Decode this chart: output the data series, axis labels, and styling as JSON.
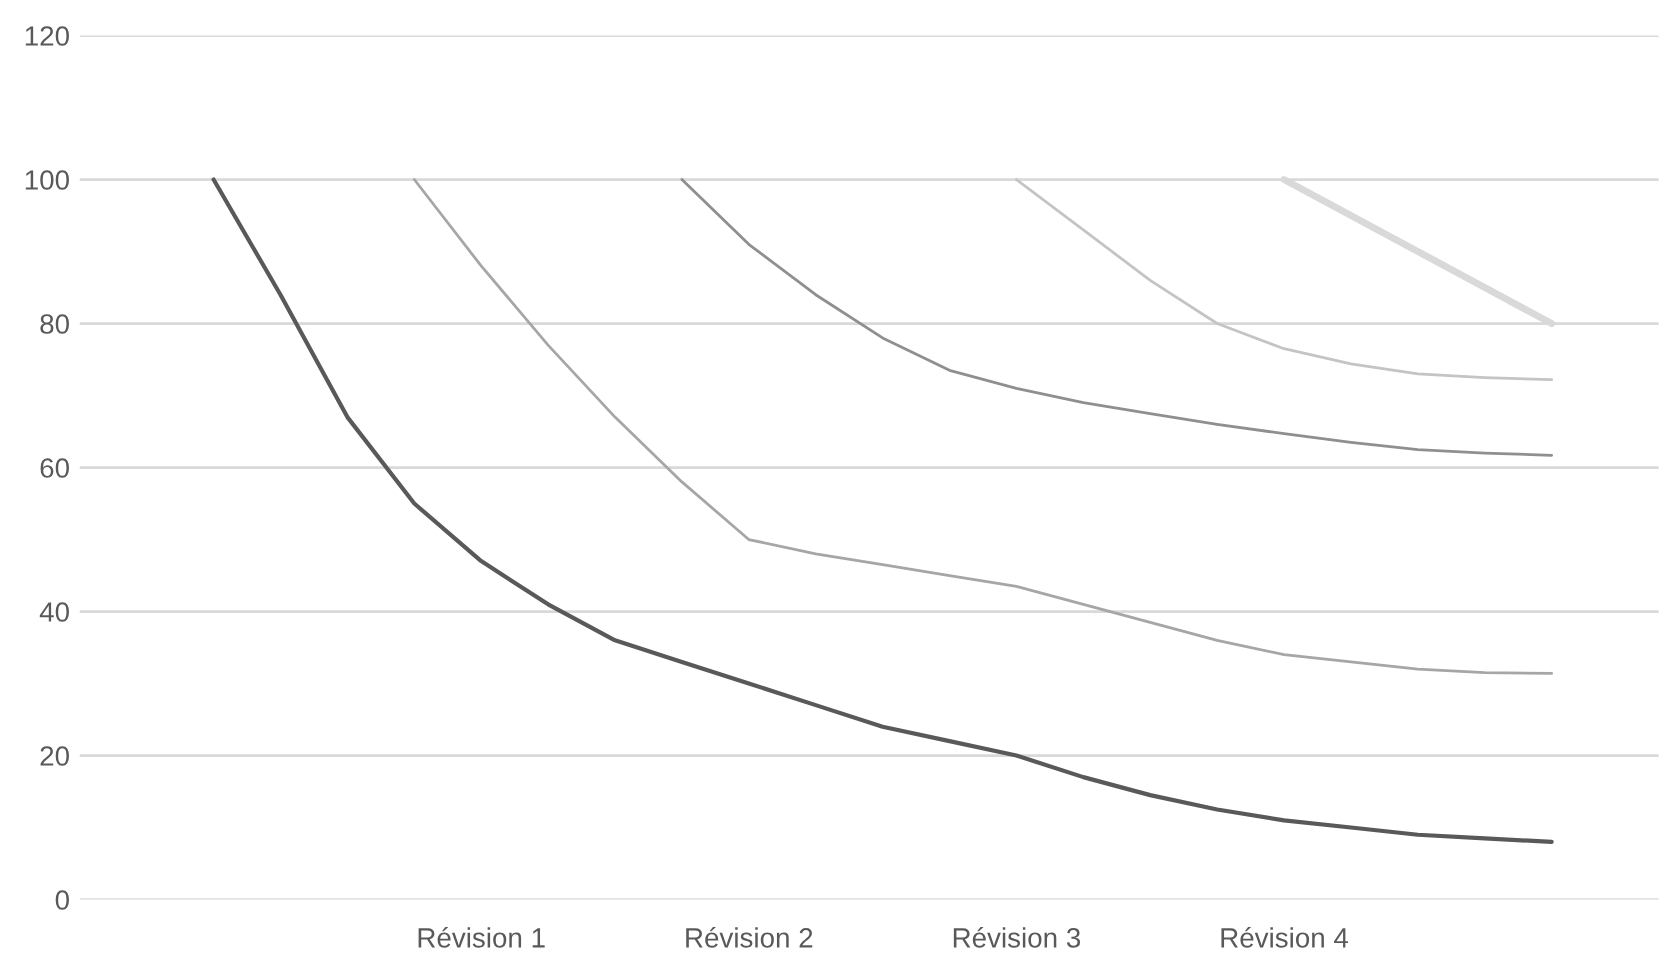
{
  "chart_data": {
    "type": "line",
    "categories": [
      null,
      null,
      null,
      null,
      "Révision 1",
      null,
      null,
      null,
      "Révision 2",
      null,
      null,
      null,
      "Révision 3",
      null,
      null,
      null,
      "Révision 4",
      null,
      null,
      null,
      null
    ],
    "series": [
      {
        "color": "#595959",
        "values": [
          100,
          84,
          67,
          55,
          47,
          41,
          36,
          33,
          30,
          27,
          24,
          22,
          20,
          17,
          14.5,
          12.5,
          11,
          10,
          9,
          8.5,
          8
        ]
      },
      {
        "color": "#a6a6a6",
        "values": [
          null,
          null,
          null,
          100,
          88,
          77,
          67,
          58,
          50,
          48,
          46.5,
          45,
          43.5,
          41,
          38.5,
          36,
          34,
          33,
          32,
          31.5,
          31.4
        ]
      },
      {
        "color": "#8f8f8f",
        "values": [
          null,
          null,
          null,
          null,
          null,
          null,
          null,
          100,
          91,
          84,
          78,
          73.5,
          71,
          69,
          67.5,
          66,
          64.7,
          63.5,
          62.5,
          62,
          61.7
        ]
      },
      {
        "color": "#c4c4c4",
        "values": [
          null,
          null,
          null,
          null,
          null,
          null,
          null,
          null,
          null,
          null,
          null,
          null,
          100,
          93,
          86,
          80,
          76.5,
          74.4,
          73,
          72.5,
          72.2
        ]
      },
      {
        "color": "#d9d9d9",
        "values": [
          null,
          null,
          null,
          null,
          null,
          null,
          null,
          null,
          null,
          null,
          null,
          null,
          null,
          null,
          null,
          null,
          100,
          95,
          90,
          85,
          80
        ]
      }
    ],
    "ylim": [
      0,
      120
    ],
    "yticks": [
      0,
      20,
      40,
      60,
      80,
      100,
      120
    ],
    "grid": "y",
    "line_style": "solid",
    "marker": "none"
  }
}
